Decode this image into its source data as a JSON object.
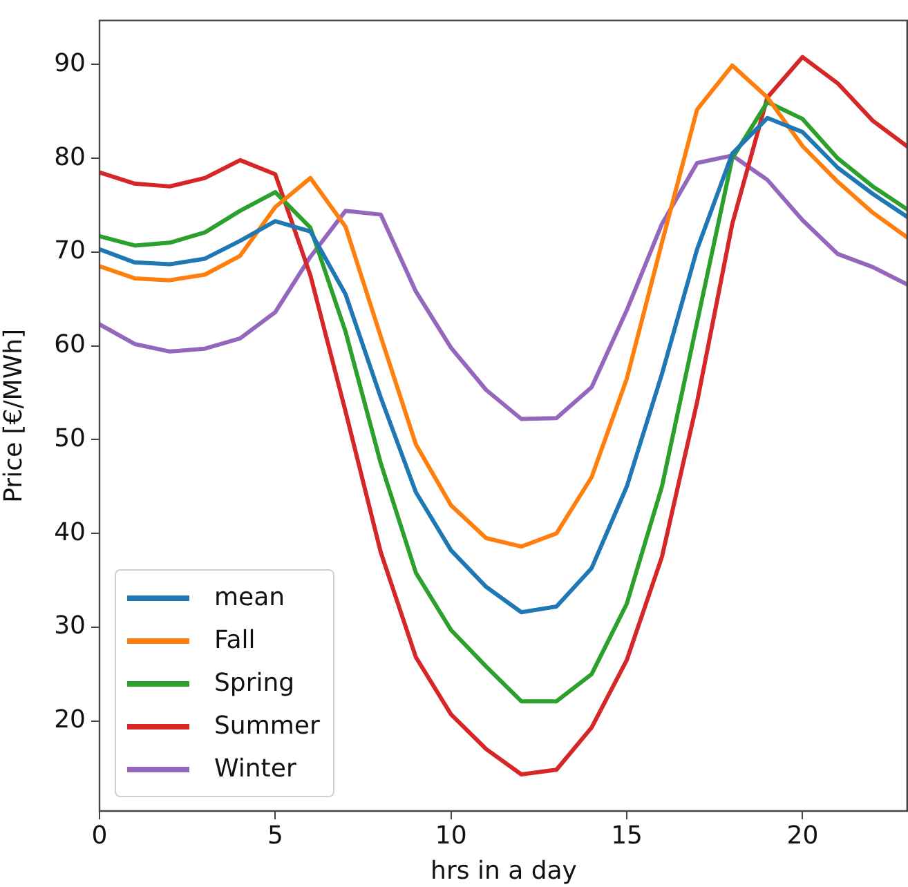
{
  "chart_data": {
    "type": "line",
    "xlabel": "hrs in a day",
    "ylabel": "Price [€/MWh]",
    "x": [
      0,
      1,
      2,
      3,
      4,
      5,
      6,
      7,
      8,
      9,
      10,
      11,
      12,
      13,
      14,
      15,
      16,
      17,
      18,
      19,
      20,
      21,
      22,
      23
    ],
    "series": [
      {
        "name": "mean",
        "color": "#1f77b4",
        "values": [
          70.3,
          68.9,
          68.7,
          69.3,
          71.2,
          73.3,
          72.2,
          65.5,
          54.5,
          44.4,
          38.2,
          34.3,
          31.6,
          32.2,
          36.3,
          45,
          57,
          70.3,
          80.5,
          84.3,
          82.8,
          79,
          76.2,
          73.7
        ]
      },
      {
        "name": "Fall",
        "color": "#ff7f0e",
        "values": [
          68.5,
          67.2,
          67,
          67.6,
          69.6,
          74.8,
          77.9,
          72.7,
          61,
          49.5,
          43,
          39.5,
          38.6,
          40,
          46,
          56.5,
          71,
          85.2,
          89.9,
          86.5,
          81.3,
          77.5,
          74.2,
          71.5
        ]
      },
      {
        "name": "Spring",
        "color": "#2ca02c",
        "values": [
          71.7,
          70.7,
          71,
          72.1,
          74.4,
          76.4,
          72.6,
          61.5,
          47.5,
          35.8,
          29.7,
          25.8,
          22.1,
          22.1,
          25,
          32.5,
          45,
          62.5,
          80,
          86,
          84.2,
          80,
          77,
          74.5
        ]
      },
      {
        "name": "Summer",
        "color": "#d62728",
        "values": [
          78.5,
          77.3,
          77,
          77.9,
          79.8,
          78.3,
          67.5,
          53,
          38,
          26.8,
          20.7,
          17,
          14.3,
          14.8,
          19.3,
          26.5,
          37.5,
          54,
          73,
          86.5,
          90.8,
          88,
          84,
          81.2
        ]
      },
      {
        "name": "Winter",
        "color": "#9467bd",
        "values": [
          62.3,
          60.2,
          59.4,
          59.7,
          60.8,
          63.6,
          69.5,
          74.4,
          74,
          65.8,
          59.8,
          55.3,
          52.2,
          52.3,
          55.6,
          63.8,
          73,
          79.5,
          80.3,
          77.7,
          73.4,
          69.8,
          68.4,
          66.5
        ]
      }
    ],
    "xlim": [
      0,
      23
    ],
    "xticks": [
      0,
      5,
      10,
      15,
      20
    ],
    "ylim": [
      10.4,
      94.7
    ],
    "yticks": [
      20,
      30,
      40,
      50,
      60,
      70,
      80,
      90
    ],
    "grid": false,
    "legend": "bottom left",
    "marker": "none",
    "line_style": "solid"
  }
}
